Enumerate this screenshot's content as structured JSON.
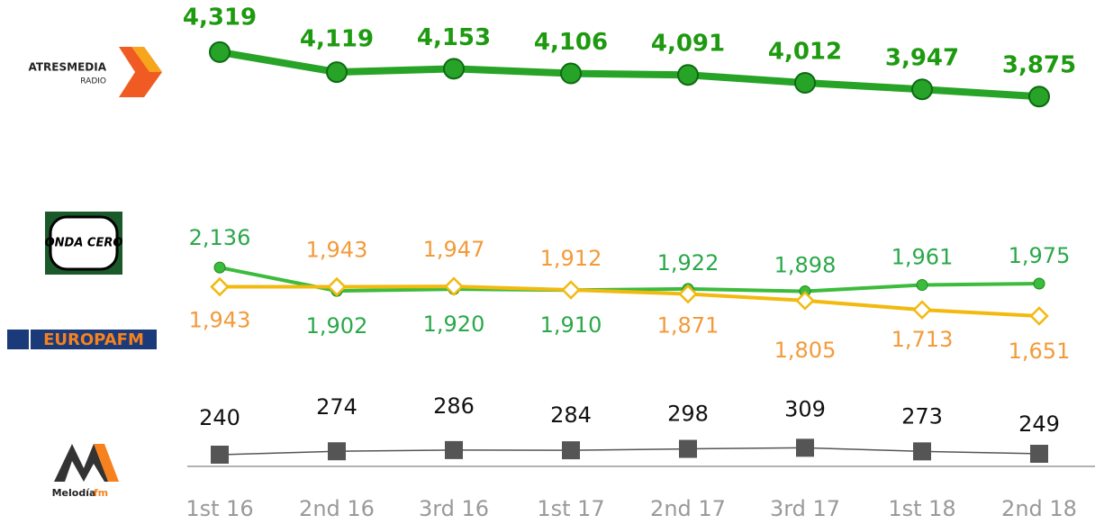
{
  "chart_data": {
    "type": "line",
    "categories": [
      "1st 16",
      "2nd 16",
      "3rd 16",
      "1st 17",
      "2nd 17",
      "3rd 17",
      "1st 18",
      "2nd 18"
    ],
    "series": [
      {
        "name": "ATRESMEDIA",
        "sub": "RADIO",
        "color": "#27a327",
        "label_color": "#1e9a10",
        "marker": "circle",
        "ylim": [
          -20,
          4480
        ],
        "values": [
          4319,
          4119,
          4153,
          4106,
          4091,
          4012,
          3947,
          3875
        ],
        "value_labels": [
          "4,319",
          "4,119",
          "4,153",
          "4,106",
          "4,091",
          "4,012",
          "3,947",
          "3,875"
        ]
      },
      {
        "name": "ONDA CERO",
        "color": "#3cbb3c",
        "label_color": "#2aa84a",
        "marker": "dot",
        "ylim": [
          -50,
          4450
        ],
        "values": [
          2136,
          1902,
          1920,
          1910,
          1922,
          1898,
          1961,
          1975
        ],
        "value_labels": [
          "2,136",
          "1,902",
          "1,920",
          "1,910",
          "1,922",
          "1,898",
          "1,961",
          "1,975"
        ]
      },
      {
        "name": "EUROPAFM",
        "color": "#f2b90f",
        "label_color": "#f39a3a",
        "marker": "diamond",
        "ylim": [
          -50,
          4450
        ],
        "values": [
          1943,
          1943,
          1947,
          1912,
          1871,
          1805,
          1713,
          1651
        ],
        "value_labels": [
          "1,943",
          "1,943",
          "1,947",
          "1,912",
          "1,871",
          "1,805",
          "1,713",
          "1,651"
        ]
      },
      {
        "name": "Melodía",
        "sub": "fm",
        "color": "#555555",
        "label_color": "#111111",
        "marker": "square",
        "ylim": [
          -75,
          4425
        ],
        "values": [
          240,
          274,
          286,
          284,
          298,
          309,
          273,
          249
        ],
        "value_labels": [
          "240",
          "274",
          "286",
          "284",
          "298",
          "309",
          "273",
          "249"
        ]
      }
    ]
  }
}
